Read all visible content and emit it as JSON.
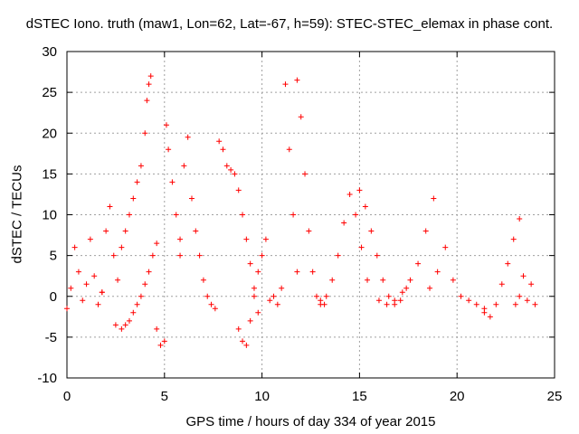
{
  "chart_data": {
    "type": "scatter",
    "title": "dSTEC Iono. truth (maw1, Lon=62, Lat=-67, h=59): STEC-STEC_elemax in phase cont.",
    "xlabel": "GPS time / hours of day 334 of year 2015",
    "ylabel": "dSTEC  / TECUs",
    "xlim": [
      0,
      25
    ],
    "ylim": [
      -10,
      30
    ],
    "xticks": [
      0,
      5,
      10,
      15,
      20,
      25
    ],
    "yticks": [
      -10,
      -5,
      0,
      5,
      10,
      15,
      20,
      25,
      30
    ],
    "grid": true,
    "marker": "plus",
    "color": "#ff0000",
    "series": [
      {
        "x": [
          0.0,
          0.2,
          0.4,
          0.6,
          0.8,
          1.0,
          1.2,
          1.4,
          1.6,
          1.8
        ],
        "values": [
          -1.5,
          1.0,
          6.0,
          3.0,
          -0.5,
          1.5,
          7.0,
          2.5,
          -1.0,
          0.5
        ]
      },
      {
        "x": [
          1.8,
          2.0,
          2.2,
          2.4,
          2.6,
          2.8,
          3.0,
          3.2,
          3.4,
          3.6,
          3.8,
          4.0,
          4.1,
          4.2,
          4.3
        ],
        "values": [
          0.5,
          8.0,
          11.0,
          5.0,
          2.0,
          6.0,
          8.0,
          10.0,
          12.0,
          14.0,
          16.0,
          20.0,
          24.0,
          26.0,
          27.0
        ]
      },
      {
        "x": [
          2.5,
          2.8,
          3.0,
          3.2,
          3.4,
          3.6,
          3.8,
          4.0,
          4.2,
          4.4,
          4.6
        ],
        "values": [
          -3.5,
          -4.0,
          -3.5,
          -3.0,
          -2.0,
          -1.0,
          0.0,
          1.5,
          3.0,
          5.0,
          6.5
        ]
      },
      {
        "x": [
          4.6,
          4.8,
          5.0,
          5.1,
          5.2,
          5.4,
          5.6,
          5.8
        ],
        "values": [
          -4.0,
          -6.0,
          -5.5,
          21.0,
          18.0,
          14.0,
          10.0,
          7.0
        ]
      },
      {
        "x": [
          5.8,
          6.0,
          6.2,
          6.4,
          6.6,
          6.8,
          7.0,
          7.2,
          7.4,
          7.6
        ],
        "values": [
          5.0,
          16.0,
          19.5,
          12.0,
          8.0,
          5.0,
          2.0,
          0.0,
          -1.0,
          -1.5
        ]
      },
      {
        "x": [
          7.8,
          8.0,
          8.2,
          8.4,
          8.6,
          8.8,
          9.0,
          9.2,
          9.4,
          9.6,
          9.8
        ],
        "values": [
          19.0,
          18.0,
          16.0,
          15.5,
          15.0,
          13.0,
          10.0,
          7.0,
          4.0,
          1.0,
          -2.0
        ]
      },
      {
        "x": [
          8.8,
          9.0,
          9.2,
          9.4,
          9.6,
          9.8,
          10.0,
          10.2
        ],
        "values": [
          -4.0,
          -5.5,
          -6.0,
          -3.0,
          0.0,
          3.0,
          5.0,
          7.0
        ]
      },
      {
        "x": [
          10.4,
          10.6,
          10.8,
          11.0,
          11.2,
          11.4,
          11.6,
          11.8
        ],
        "values": [
          -0.5,
          0.0,
          -1.0,
          1.0,
          26.0,
          18.0,
          10.0,
          3.0
        ]
      },
      {
        "x": [
          11.8,
          12.0,
          12.2,
          12.4,
          12.6,
          12.8,
          13.0,
          13.2
        ],
        "values": [
          26.5,
          22.0,
          15.0,
          8.0,
          3.0,
          0.0,
          -0.5,
          -1.0
        ]
      },
      {
        "x": [
          13.0,
          13.3,
          13.6,
          13.9,
          14.2,
          14.5,
          14.8,
          15.1,
          15.4
        ],
        "values": [
          -1.0,
          0.0,
          2.0,
          5.0,
          9.0,
          12.5,
          10.0,
          6.0,
          2.0
        ]
      },
      {
        "x": [
          15.0,
          15.3,
          15.6,
          15.9,
          16.2,
          16.5,
          16.8,
          17.1,
          17.4
        ],
        "values": [
          13.0,
          11.0,
          8.0,
          5.0,
          2.0,
          0.0,
          -1.0,
          -0.5,
          1.0
        ]
      },
      {
        "x": [
          16.0,
          16.4,
          16.8,
          17.2,
          17.6,
          18.0,
          18.4,
          18.8
        ],
        "values": [
          -0.5,
          -1.0,
          -0.5,
          0.5,
          2.0,
          4.0,
          8.0,
          12.0
        ]
      },
      {
        "x": [
          18.6,
          19.0,
          19.4,
          19.8,
          20.2,
          20.6,
          21.0,
          21.4
        ],
        "values": [
          1.0,
          3.0,
          6.0,
          2.0,
          0.0,
          -0.5,
          -1.0,
          -1.5
        ]
      },
      {
        "x": [
          21.4,
          21.7,
          22.0,
          22.3,
          22.6,
          22.9,
          23.2
        ],
        "values": [
          -2.0,
          -2.5,
          -1.0,
          1.5,
          4.0,
          7.0,
          9.5
        ]
      },
      {
        "x": [
          23.0,
          23.2,
          23.4,
          23.6,
          23.8,
          24.0
        ],
        "values": [
          -1.0,
          0.0,
          2.5,
          -0.5,
          1.5,
          -1.0
        ]
      }
    ]
  }
}
